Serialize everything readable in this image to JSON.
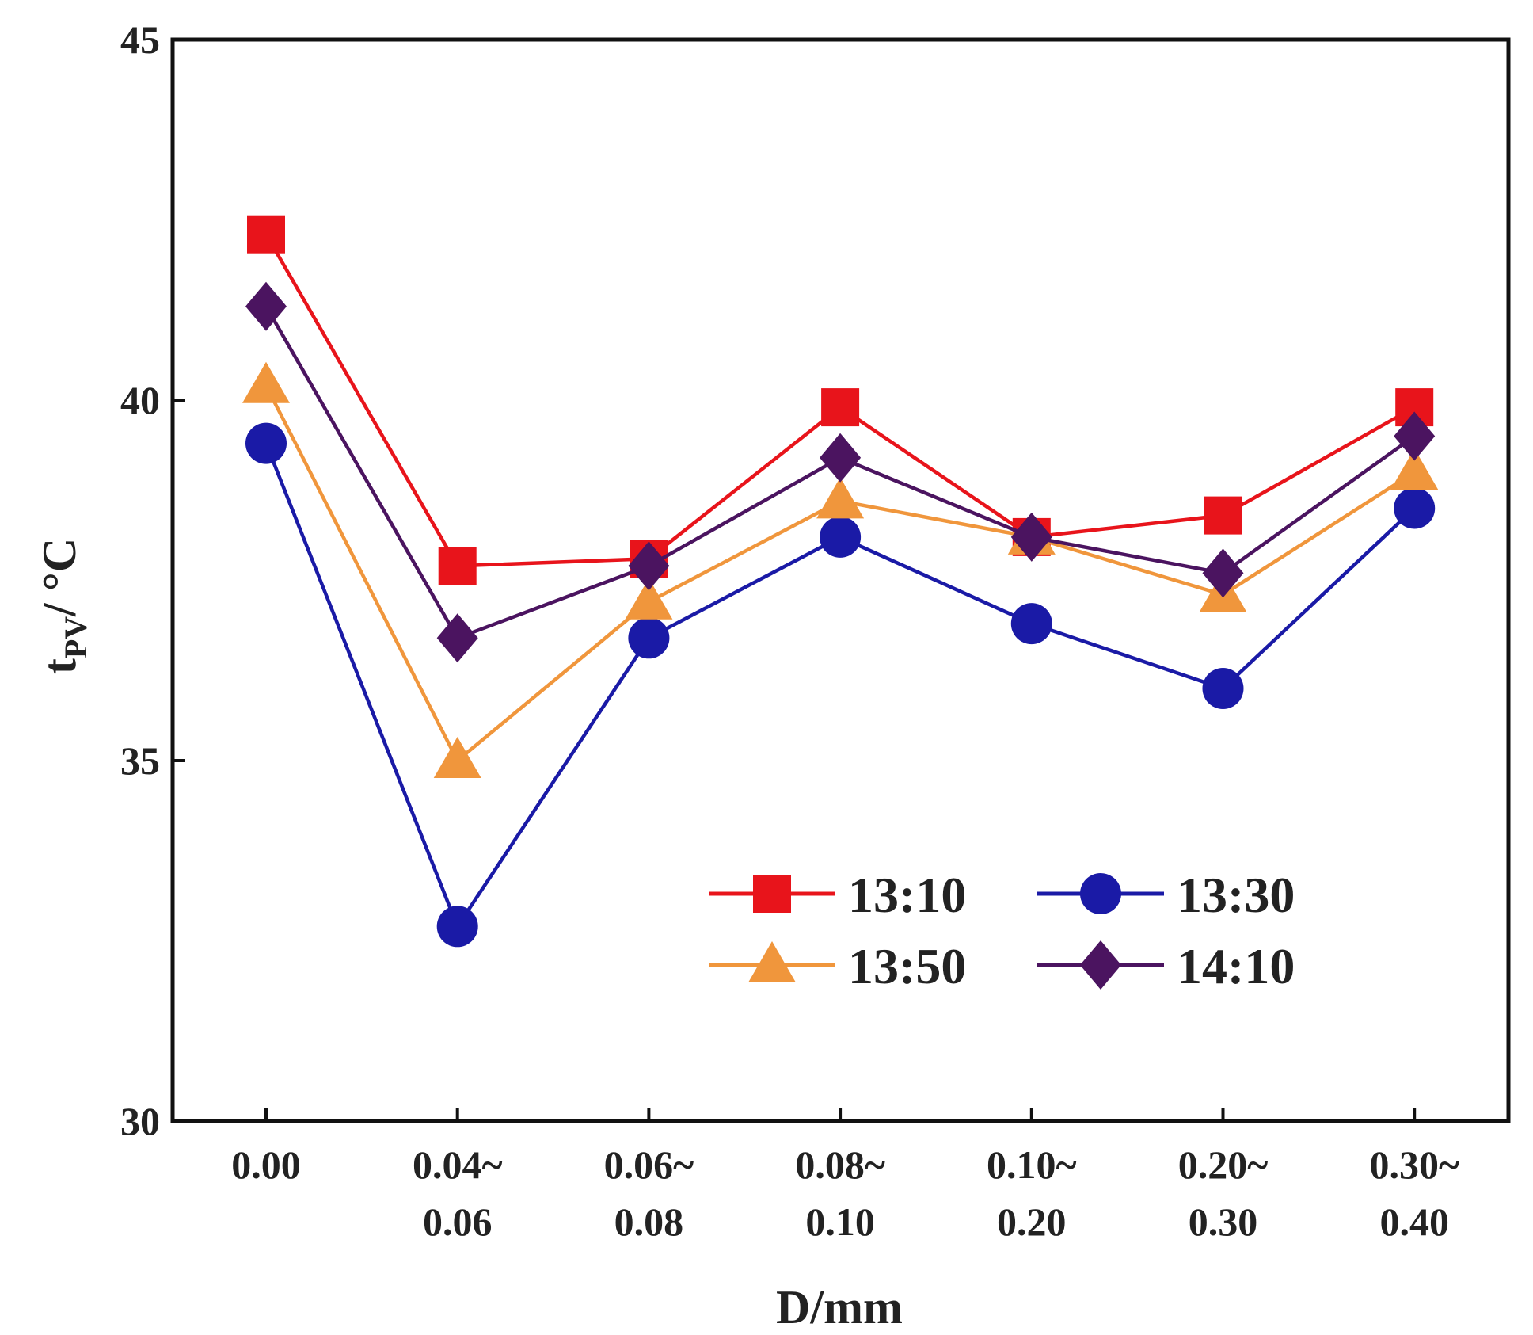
{
  "chart_data": {
    "type": "line",
    "title": "",
    "xlabel": "D/mm",
    "ylabel": {
      "main": "t",
      "sub": "PV",
      "unit": "/ °C"
    },
    "categories": [
      [
        "0.00"
      ],
      [
        "0.04~",
        "0.06"
      ],
      [
        "0.06~",
        "0.08"
      ],
      [
        "0.08~",
        "0.10"
      ],
      [
        "0.10~",
        "0.20"
      ],
      [
        "0.20~",
        "0.30"
      ],
      [
        "0.30~",
        "0.40"
      ]
    ],
    "ylim": [
      30,
      45
    ],
    "yticks": [
      30,
      35,
      40,
      45
    ],
    "grid": false,
    "legend_position": "bottom-right",
    "series": [
      {
        "name": "13:10",
        "color": "#e8141b",
        "marker": "square",
        "values": [
          42.3,
          37.7,
          37.8,
          39.9,
          38.1,
          38.4,
          39.9
        ]
      },
      {
        "name": "13:30",
        "color": "#1a1aa6",
        "marker": "circle",
        "values": [
          39.4,
          32.7,
          36.7,
          38.1,
          36.9,
          36.0,
          38.5
        ]
      },
      {
        "name": "13:50",
        "color": "#f0963c",
        "marker": "triangle",
        "values": [
          40.2,
          35.0,
          37.2,
          38.6,
          38.1,
          37.3,
          39.0
        ]
      },
      {
        "name": "14:10",
        "color": "#4b1460",
        "marker": "diamond",
        "values": [
          41.3,
          36.7,
          37.7,
          39.2,
          38.1,
          37.6,
          39.5
        ]
      }
    ]
  }
}
